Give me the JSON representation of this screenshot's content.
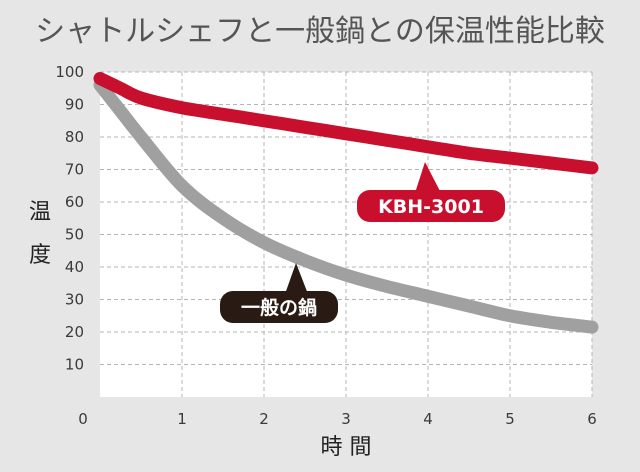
{
  "chart_data": {
    "type": "line",
    "title": "シャトルシェフと一般鍋との保温性能比較",
    "xlabel": "時 間",
    "ylabel_chars": [
      "温",
      "度"
    ],
    "xlim": [
      0,
      6
    ],
    "ylim": [
      0,
      100
    ],
    "x_ticks": [
      "0",
      "1",
      "2",
      "3",
      "4",
      "5",
      "6"
    ],
    "y_ticks": [
      "10",
      "20",
      "30",
      "40",
      "50",
      "60",
      "70",
      "80",
      "90",
      "100"
    ],
    "grid": true,
    "series": [
      {
        "name": "KBH-3001",
        "color": "#c8102e",
        "x": [
          0,
          0.25,
          0.5,
          1,
          1.5,
          2,
          2.5,
          3,
          3.5,
          4,
          4.5,
          5,
          5.5,
          6
        ],
        "y": [
          98,
          95,
          92,
          89,
          87,
          85,
          83,
          81,
          79,
          77,
          75,
          73.5,
          72,
          70.5
        ]
      },
      {
        "name": "一般の鍋",
        "color": "#a0a0a0",
        "x": [
          0,
          0.25,
          0.5,
          1,
          1.5,
          2,
          2.5,
          3,
          3.5,
          4,
          4.5,
          5,
          5.5,
          6
        ],
        "y": [
          96,
          88,
          80,
          65,
          55,
          47.5,
          42,
          37.5,
          34,
          31,
          28,
          25,
          23,
          21.5
        ]
      }
    ]
  }
}
